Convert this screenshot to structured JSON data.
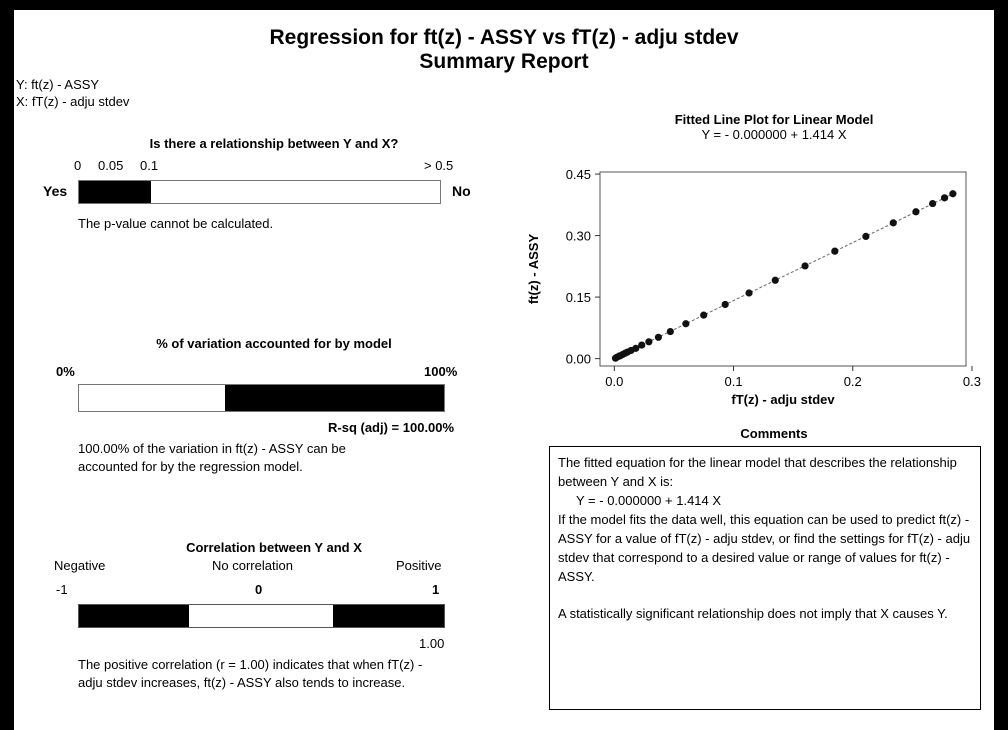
{
  "report": {
    "title_line1": "Regression for ft(z) - ASSY vs fT(z) - adju stdev",
    "title_line2": "Summary Report",
    "y_var": "Y: ft(z) - ASSY",
    "x_var": "X: fT(z) - adju stdev"
  },
  "relationship": {
    "title": "Is there a relationship between Y and X?",
    "ticks": [
      "0",
      "0.05",
      "0.1",
      "> 0.5"
    ],
    "yes_label": "Yes",
    "no_label": "No",
    "fill_fraction": 0.2,
    "message": "The p-value cannot be calculated."
  },
  "variation": {
    "title": "% of variation accounted for by model",
    "left_label": "0%",
    "right_label": "100%",
    "fill_fraction": 1.0,
    "rsq_label": "R-sq (adj) = 100.00%",
    "message": "100.00% of the variation in ft(z) - ASSY can be accounted for by the regression model."
  },
  "correlation": {
    "title": "Correlation between Y and X",
    "negative_label": "Negative",
    "none_label": "No correlation",
    "positive_label": "Positive",
    "tick_left": "-1",
    "tick_mid": "0",
    "tick_right": "1",
    "value_label": "1.00",
    "value": 1.0,
    "message": "The positive correlation (r = 1.00) indicates that when fT(z) - adju stdev increases, ft(z) - ASSY also tends to increase."
  },
  "comments": {
    "title": "Comments",
    "p1": "The fitted equation for the linear model that describes the relationship between Y and X is:",
    "equation": "Y = - 0.000000 + 1.414 X",
    "p2": "If the model fits the data well, this equation can be used to predict ft(z) - ASSY for a value of fT(z) - adju stdev, or find the settings for fT(z) - adju stdev that correspond to a desired value or range of values for ft(z) - ASSY.",
    "p3": "A statistically significant relationship does not imply that X causes Y."
  },
  "chart_data": {
    "type": "scatter",
    "title": "Fitted Line Plot for Linear Model",
    "subtitle": "Y = - 0.000000 + 1.414 X",
    "xlabel": "fT(z) - adju stdev",
    "ylabel": "ft(z) - ASSY",
    "xlim": [
      -0.012,
      0.295
    ],
    "ylim": [
      -0.018,
      0.455
    ],
    "xticks": [
      0.0,
      0.1,
      0.2,
      0.3
    ],
    "xtick_labels": [
      "0.0",
      "0.1",
      "0.2",
      "0.3"
    ],
    "yticks": [
      0.0,
      0.15,
      0.3,
      0.45
    ],
    "ytick_labels": [
      "0.00",
      "0.15",
      "0.30",
      "0.45"
    ],
    "fit": {
      "intercept": 0.0,
      "slope": 1.414
    },
    "x": [
      0.001,
      0.002,
      0.004,
      0.005,
      0.007,
      0.009,
      0.011,
      0.014,
      0.018,
      0.023,
      0.029,
      0.037,
      0.047,
      0.06,
      0.075,
      0.093,
      0.113,
      0.135,
      0.16,
      0.185,
      0.211,
      0.234,
      0.253,
      0.267,
      0.277,
      0.284
    ],
    "y": [
      0.001,
      0.003,
      0.006,
      0.007,
      0.01,
      0.013,
      0.016,
      0.02,
      0.025,
      0.033,
      0.041,
      0.052,
      0.066,
      0.085,
      0.106,
      0.132,
      0.16,
      0.191,
      0.226,
      0.262,
      0.298,
      0.331,
      0.358,
      0.378,
      0.392,
      0.402
    ],
    "grid": false,
    "legend": "none"
  }
}
